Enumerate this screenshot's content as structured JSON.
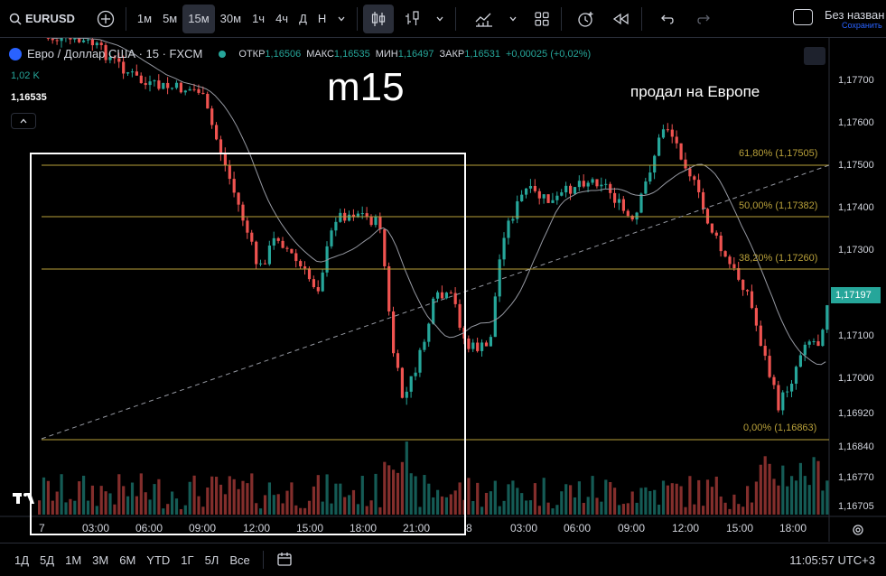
{
  "toolbar": {
    "symbol": "EURUSD",
    "timeframes": [
      "1м",
      "5м",
      "15м",
      "30м",
      "1ч",
      "4ч",
      "Д",
      "Н"
    ],
    "active_timeframe": "15м",
    "unnamed": "Без назван",
    "save": "Сохранить"
  },
  "legend": {
    "title": "Евро / Доллар США · 15 · FXCM",
    "open_label": "ОТКР",
    "open": "1,16506",
    "high_label": "МАКС",
    "high": "1,16535",
    "low_label": "МИН",
    "low": "1,16497",
    "close_label": "ЗАКР",
    "close": "1,16531",
    "change": "+0,00025 (+0,02%)",
    "volume": "1,02 K",
    "last_price": "1,16535"
  },
  "annotations": {
    "timeframe_note": "m15",
    "comment": "продал на Европе"
  },
  "price_axis": [
    "1,17700",
    "1,17600",
    "1,17500",
    "1,17400",
    "1,17300",
    "1,17197",
    "1,17100",
    "1,17000",
    "1,16920",
    "1,16840",
    "1,16770",
    "1,16705"
  ],
  "current_price": "1,17197",
  "time_axis": [
    "7",
    "03:00",
    "06:00",
    "09:00",
    "12:00",
    "15:00",
    "18:00",
    "21:00",
    "8",
    "03:00",
    "06:00",
    "09:00",
    "12:00",
    "15:00",
    "18:00"
  ],
  "fib_levels": [
    "61,80% (1,17505)",
    "50,00% (1,17382)",
    "38,20% (1,17260)",
    "0,00% (1,16863)"
  ],
  "bottom": {
    "ranges": [
      "1Д",
      "5Д",
      "1М",
      "3М",
      "6М",
      "YTD",
      "1Г",
      "5Л",
      "Все"
    ],
    "clock": "11:05:57 UTC+3"
  },
  "colors": {
    "up": "#26a69a",
    "down": "#ef5350",
    "fib": "#b8a03a"
  }
}
